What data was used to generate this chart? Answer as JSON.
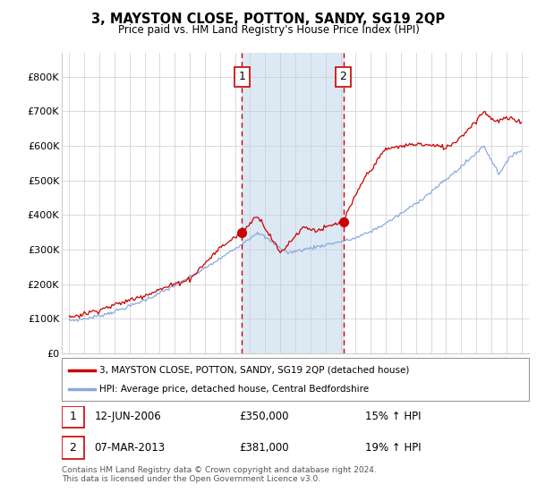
{
  "title": "3, MAYSTON CLOSE, POTTON, SANDY, SG19 2QP",
  "subtitle": "Price paid vs. HM Land Registry's House Price Index (HPI)",
  "property_label": "3, MAYSTON CLOSE, POTTON, SANDY, SG19 2QP (detached house)",
  "hpi_label": "HPI: Average price, detached house, Central Bedfordshire",
  "transaction1_date": "12-JUN-2006",
  "transaction1_price": "£350,000",
  "transaction1_hpi": "15% ↑ HPI",
  "transaction1_year": 2006.45,
  "transaction2_date": "07-MAR-2013",
  "transaction2_price": "£381,000",
  "transaction2_hpi": "19% ↑ HPI",
  "transaction2_year": 2013.18,
  "footer": "Contains HM Land Registry data © Crown copyright and database right 2024.\nThis data is licensed under the Open Government Licence v3.0.",
  "background_color": "#ffffff",
  "plot_bg_color": "#ffffff",
  "shaded_region_color": "#dce9f5",
  "grid_color": "#cccccc",
  "line_color_property": "#cc0000",
  "line_color_hpi": "#88aadd",
  "vline_color": "#cc0000",
  "ylim": [
    0,
    870000
  ],
  "xlim_start": 1994.5,
  "xlim_end": 2025.5,
  "yticks": [
    0,
    100000,
    200000,
    300000,
    400000,
    500000,
    600000,
    700000,
    800000
  ],
  "ytick_labels": [
    "£0",
    "£100K",
    "£200K",
    "£300K",
    "£400K",
    "£500K",
    "£600K",
    "£700K",
    "£800K"
  ],
  "xticks": [
    1995,
    1996,
    1997,
    1998,
    1999,
    2000,
    2001,
    2002,
    2003,
    2004,
    2005,
    2006,
    2007,
    2008,
    2009,
    2010,
    2011,
    2012,
    2013,
    2014,
    2015,
    2016,
    2017,
    2018,
    2019,
    2020,
    2021,
    2022,
    2023,
    2024,
    2025
  ],
  "prop_marker1_y": 350000,
  "prop_marker2_y": 381000
}
